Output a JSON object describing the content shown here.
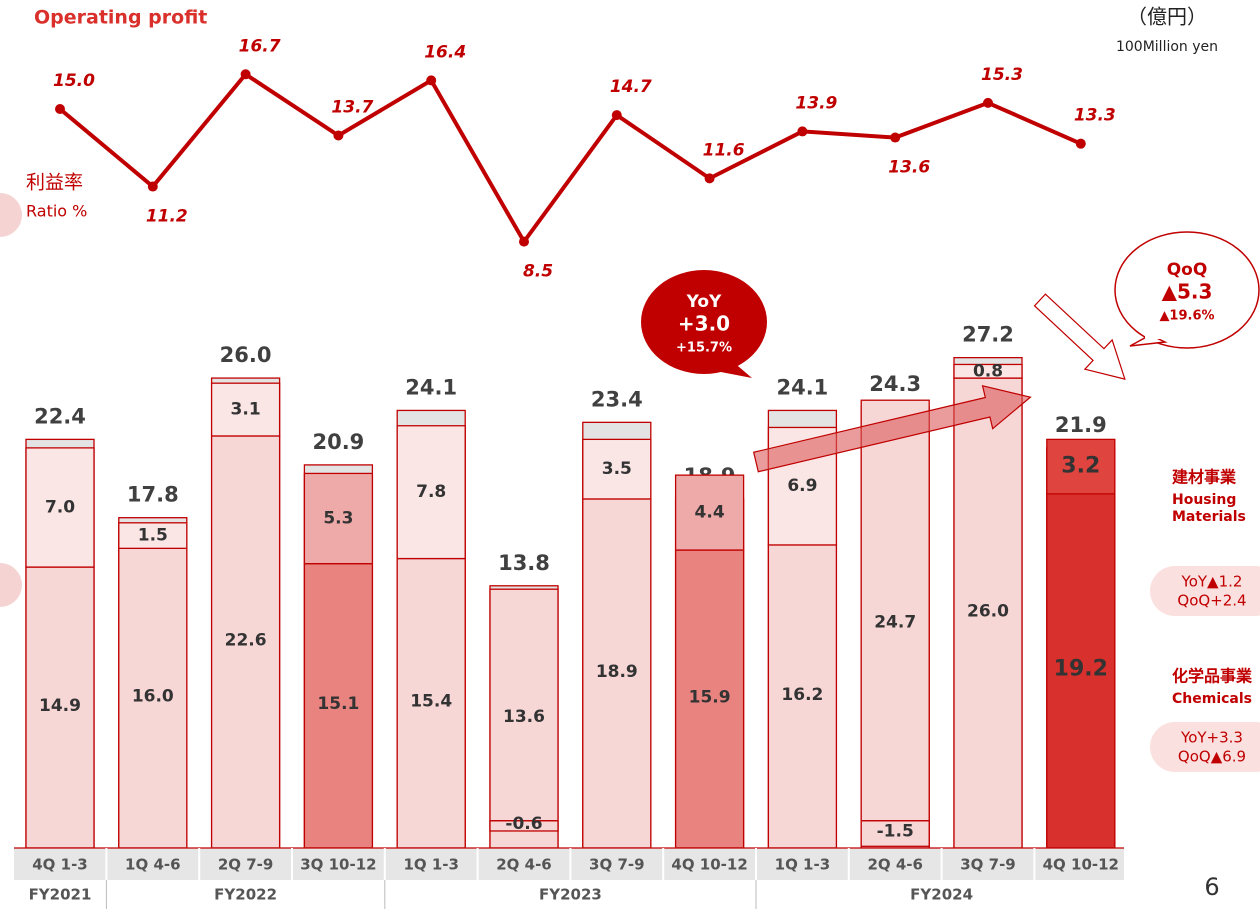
{
  "chart_data": {
    "type": "bar",
    "title": "Operating profit",
    "unit": "（億円）",
    "unit_en": "100Million yen",
    "page": "6",
    "categories": [
      "4Q 1-3",
      "1Q 4-6",
      "2Q 7-9",
      "3Q 10-12",
      "1Q 1-3",
      "2Q 4-6",
      "3Q 7-9",
      "4Q 10-12",
      "1Q 1-3",
      "2Q 4-6",
      "3Q 7-9",
      "4Q 10-12"
    ],
    "groups": [
      {
        "label": "FY2021",
        "span": 1
      },
      {
        "label": "FY2022",
        "span": 3
      },
      {
        "label": "FY2023",
        "span": 4
      },
      {
        "label": "FY2024",
        "span": 4
      }
    ],
    "ylim": [
      -1.6,
      29
    ],
    "y2lim": [
      7.6,
      17.4
    ],
    "totals": {
      "values": [
        22.4,
        17.8,
        26.0,
        20.9,
        24.1,
        13.8,
        23.4,
        18.9,
        24.1,
        24.3,
        27.2,
        21.9
      ],
      "value_labels": [
        "22.4",
        "17.8",
        "26.0",
        "20.9",
        "24.1",
        "13.8",
        "23.4",
        "18.9",
        "24.1",
        "24.3",
        "27.2",
        "21.9"
      ],
      "color": "#e3e3e3"
    },
    "series": [
      {
        "name": "化学品事業",
        "name_lines": [
          "Chemicals"
        ],
        "yoy": "YoY+3.3",
        "qoq": "QoQ▲6.9",
        "values": [
          14.9,
          16.0,
          22.6,
          15.1,
          15.4,
          13.6,
          18.9,
          15.9,
          16.2,
          24.7,
          26.0,
          19.2
        ],
        "value_labels": [
          "14.9",
          "16.0",
          "22.6",
          "15.1",
          "15.4",
          "13.6",
          "18.9",
          "15.9",
          "16.2",
          "24.7",
          "26.0",
          "19.2"
        ],
        "colors": [
          "#f7d6d6",
          "#f7d6d6",
          "#f7d6d6",
          "#e8837f",
          "#f7d6d6",
          "#f7d6d6",
          "#f7d6d6",
          "#e8837f",
          "#f7d6d6",
          "#f7d6d6",
          "#f7d6d6",
          "#d8302c"
        ]
      },
      {
        "name": "建材事業",
        "name_lines": [
          "Housing",
          "Materials"
        ],
        "yoy": "YoY▲1.2",
        "qoq": "QoQ+2.4",
        "values": [
          7.0,
          1.5,
          3.1,
          5.3,
          7.8,
          -0.6,
          3.5,
          4.4,
          6.9,
          -1.5,
          0.8,
          3.2
        ],
        "value_labels": [
          "7.0",
          "1.5",
          "3.1",
          "5.3",
          "7.8",
          "-0.6",
          "3.5",
          "4.4",
          "6.9",
          "-1.5",
          "0.8",
          "3.2"
        ],
        "colors": [
          "#fbe6e6",
          "#fbe6e6",
          "#fbe6e6",
          "#eeaaa8",
          "#fbe6e6",
          "#f7d6d6",
          "#fbe6e6",
          "#eeaaa8",
          "#fbe6e6",
          "#f7d6d6",
          "#fbe6e6",
          "#e0443f"
        ]
      },
      {
        "type": "line",
        "axis": "y2",
        "name": "利益率",
        "name_en": "Ratio %",
        "color": "#c00000",
        "values": [
          15.0,
          11.2,
          16.7,
          13.7,
          16.4,
          8.5,
          14.7,
          11.6,
          13.9,
          13.6,
          15.3,
          13.3
        ],
        "value_labels": [
          "15.0",
          "11.2",
          "16.7",
          "13.7",
          "16.4",
          "8.5",
          "14.7",
          "11.6",
          "13.9",
          "13.6",
          "15.3",
          "13.3"
        ]
      }
    ],
    "annotations": [
      {
        "lines": [
          "YoY",
          "+3.0",
          "+15.7%"
        ]
      },
      {
        "lines": [
          "QoQ",
          "▲5.3",
          "▲19.6%"
        ]
      }
    ]
  }
}
